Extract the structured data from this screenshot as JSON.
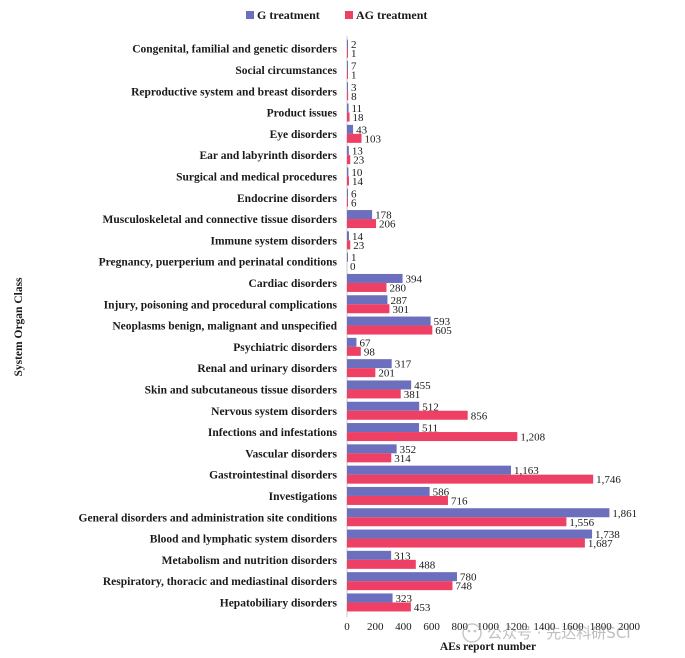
{
  "chart_data": {
    "type": "bar",
    "orientation": "horizontal",
    "xlabel": "AEs report number",
    "ylabel": "System Organ Class",
    "xlim": [
      0,
      2000
    ],
    "xticks": [
      0,
      200,
      400,
      600,
      800,
      1000,
      1200,
      1400,
      1600,
      1800,
      2000
    ],
    "xtick_labels": [
      "0",
      "200",
      "400",
      "600",
      "800",
      "1000",
      "1200",
      "1400",
      "1600",
      "1800",
      "2000"
    ],
    "grid": false,
    "legend_position": "top",
    "colors": {
      "G treatment": "#6b6fbe",
      "AG treatment": "#ee3f65"
    },
    "categories": [
      "Congenital, familial and genetic disorders",
      "Social circumstances",
      "Reproductive system and breast disorders",
      "Product issues",
      "Eye disorders",
      "Ear and labyrinth disorders",
      "Surgical and medical procedures",
      "Endocrine disorders",
      "Musculoskeletal and connective tissue disorders",
      "Immune system disorders",
      "Pregnancy, puerperium and perinatal conditions",
      "Cardiac disorders",
      "Injury, poisoning and procedural complications",
      "Neoplasms benign, malignant and unspecified",
      "Psychiatric disorders",
      "Renal and urinary disorders",
      "Skin and subcutaneous tissue disorders",
      "Nervous system disorders",
      "Infections and infestations",
      "Vascular disorders",
      "Gastrointestinal disorders",
      "Investigations",
      "General disorders and administration site conditions",
      "Blood and lymphatic system disorders",
      "Metabolism and nutrition disorders",
      "Respiratory, thoracic and mediastinal disorders",
      "Hepatobiliary disorders"
    ],
    "series": [
      {
        "name": "G treatment",
        "values": [
          2,
          7,
          3,
          11,
          43,
          13,
          10,
          6,
          178,
          14,
          1,
          394,
          287,
          593,
          67,
          317,
          455,
          512,
          511,
          352,
          1163,
          586,
          1861,
          1738,
          313,
          780,
          323
        ],
        "labels": [
          "2",
          "7",
          "3",
          "11",
          "43",
          "13",
          "10",
          "6",
          "178",
          "14",
          "1",
          "394",
          "287",
          "593",
          "67",
          "317",
          "455",
          "512",
          "511",
          "352",
          "1,163",
          "586",
          "1,861",
          "1,738",
          "313",
          "780",
          "323"
        ]
      },
      {
        "name": "AG treatment",
        "values": [
          1,
          1,
          8,
          18,
          103,
          23,
          14,
          6,
          206,
          23,
          0,
          280,
          301,
          605,
          98,
          201,
          381,
          856,
          1208,
          314,
          1746,
          716,
          1556,
          1687,
          488,
          748,
          453
        ],
        "labels": [
          "1",
          "1",
          "8",
          "18",
          "103",
          "23",
          "14",
          "6",
          "206",
          "23",
          "0",
          "280",
          "301",
          "605",
          "98",
          "201",
          "381",
          "856",
          "1,208",
          "314",
          "1,746",
          "716",
          "1,556",
          "1,687",
          "488",
          "748",
          "453"
        ]
      }
    ]
  },
  "watermark": "公众号 · 先达科研SCI"
}
